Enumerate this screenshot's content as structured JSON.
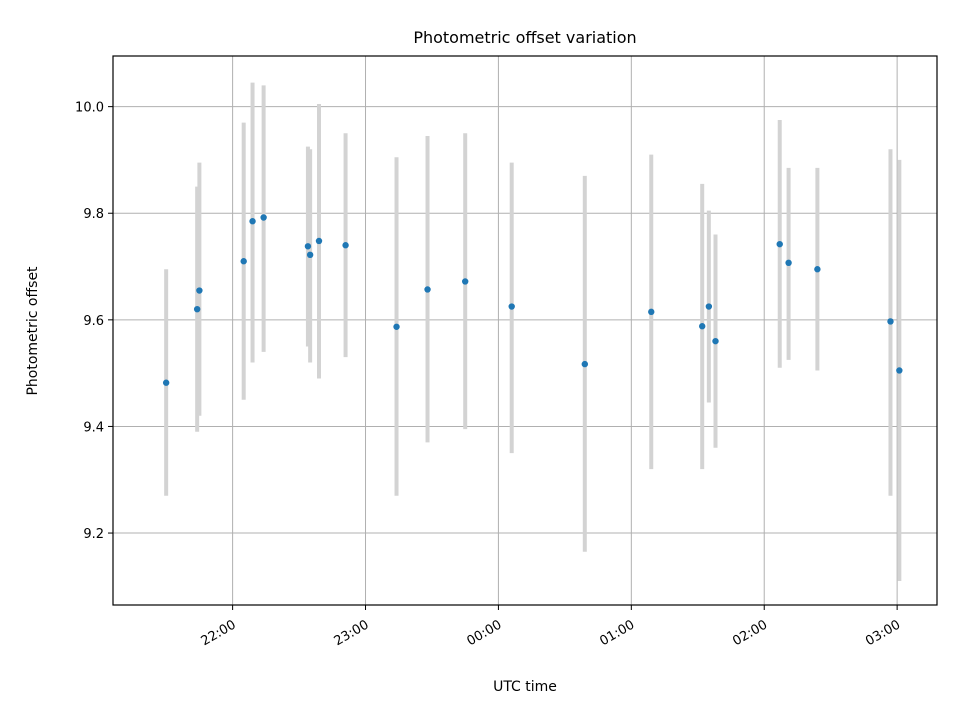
{
  "chart_data": {
    "type": "scatter",
    "title": "Photometric offset variation",
    "xlabel": "UTC time",
    "ylabel": "Photometric offset",
    "x_unit": "time (HH:MM, UTC)",
    "xlim": [
      "21:06",
      "03:18"
    ],
    "ylim": [
      9.065,
      10.095
    ],
    "x_ticks": [
      "22:00",
      "23:00",
      "00:00",
      "01:00",
      "02:00",
      "03:00"
    ],
    "y_ticks": [
      9.2,
      9.4,
      9.6,
      9.8,
      10.0
    ],
    "y_tick_labels": [
      "9.2",
      "9.4",
      "9.6",
      "9.8",
      "10.0"
    ],
    "grid": true,
    "marker_color": "#1f77b4",
    "errorbar_color": "#d3d3d3",
    "points": [
      {
        "time": "21:30",
        "y": 9.482,
        "ylow": 9.27,
        "yhigh": 9.695
      },
      {
        "time": "21:44",
        "y": 9.62,
        "ylow": 9.39,
        "yhigh": 9.85
      },
      {
        "time": "21:45",
        "y": 9.655,
        "ylow": 9.42,
        "yhigh": 9.895
      },
      {
        "time": "22:05",
        "y": 9.71,
        "ylow": 9.45,
        "yhigh": 9.97
      },
      {
        "time": "22:09",
        "y": 9.785,
        "ylow": 9.52,
        "yhigh": 10.045
      },
      {
        "time": "22:14",
        "y": 9.792,
        "ylow": 9.54,
        "yhigh": 10.04
      },
      {
        "time": "22:34",
        "y": 9.738,
        "ylow": 9.55,
        "yhigh": 9.925
      },
      {
        "time": "22:35",
        "y": 9.722,
        "ylow": 9.52,
        "yhigh": 9.92
      },
      {
        "time": "22:39",
        "y": 9.748,
        "ylow": 9.49,
        "yhigh": 10.005
      },
      {
        "time": "22:51",
        "y": 9.74,
        "ylow": 9.53,
        "yhigh": 9.95
      },
      {
        "time": "23:14",
        "y": 9.587,
        "ylow": 9.27,
        "yhigh": 9.905
      },
      {
        "time": "23:28",
        "y": 9.657,
        "ylow": 9.37,
        "yhigh": 9.945
      },
      {
        "time": "23:45",
        "y": 9.672,
        "ylow": 9.395,
        "yhigh": 9.95
      },
      {
        "time": "00:06",
        "y": 9.625,
        "ylow": 9.35,
        "yhigh": 9.895
      },
      {
        "time": "00:39",
        "y": 9.517,
        "ylow": 9.165,
        "yhigh": 9.87
      },
      {
        "time": "01:09",
        "y": 9.615,
        "ylow": 9.32,
        "yhigh": 9.91
      },
      {
        "time": "01:32",
        "y": 9.588,
        "ylow": 9.32,
        "yhigh": 9.855
      },
      {
        "time": "01:35",
        "y": 9.625,
        "ylow": 9.445,
        "yhigh": 9.805
      },
      {
        "time": "01:38",
        "y": 9.56,
        "ylow": 9.36,
        "yhigh": 9.76
      },
      {
        "time": "02:07",
        "y": 9.742,
        "ylow": 9.51,
        "yhigh": 9.975
      },
      {
        "time": "02:11",
        "y": 9.707,
        "ylow": 9.525,
        "yhigh": 9.885
      },
      {
        "time": "02:24",
        "y": 9.695,
        "ylow": 9.505,
        "yhigh": 9.885
      },
      {
        "time": "02:57",
        "y": 9.597,
        "ylow": 9.27,
        "yhigh": 9.92
      },
      {
        "time": "03:01",
        "y": 9.505,
        "ylow": 9.11,
        "yhigh": 9.9
      }
    ]
  }
}
